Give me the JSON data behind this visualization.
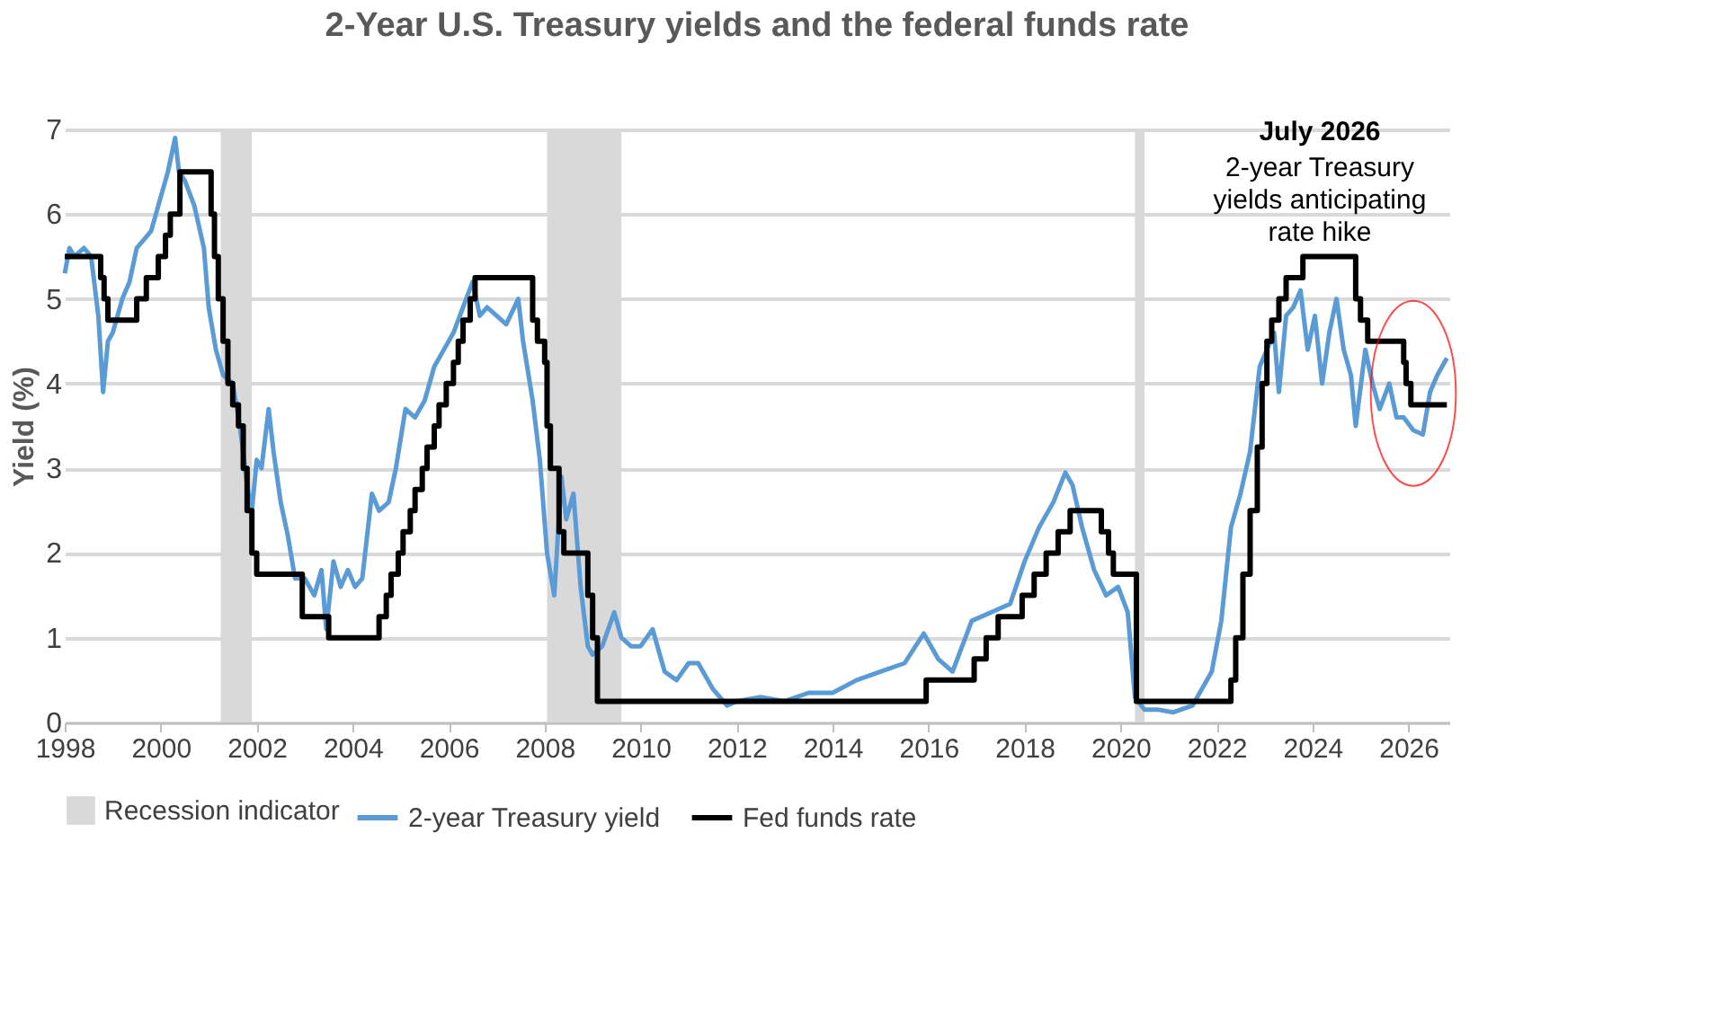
{
  "chart_data": {
    "type": "line",
    "title": "2-Year U.S. Treasury yields and the federal funds rate",
    "ylabel": "Yield (%)",
    "xlim": [
      1998,
      2026.85
    ],
    "xticks": [
      1998,
      2000,
      2002,
      2004,
      2006,
      2008,
      2010,
      2012,
      2014,
      2016,
      2018,
      2020,
      2022,
      2024,
      2026
    ],
    "ylim": [
      0,
      7
    ],
    "yticks": [
      0,
      1,
      2,
      3,
      4,
      5,
      6,
      7
    ],
    "grid": "y",
    "legend": "bottom",
    "line_style": "solid",
    "marker": "none",
    "bands": [
      {
        "axis": "x",
        "from": 2001.25,
        "to": 2001.9,
        "label": "Recession indicator",
        "color": "#d9d9d9"
      },
      {
        "axis": "x",
        "from": 2008.05,
        "to": 2009.6,
        "color": "#d9d9d9"
      },
      {
        "axis": "x",
        "from": 2020.3,
        "to": 2020.5,
        "color": "#d9d9d9"
      }
    ],
    "annotations": [
      "July 2026",
      "2-year Treasury\nyields anticipating\nrate hike"
    ],
    "series": [
      {
        "name": "2-year Treasury yield",
        "color": "#5b9bd5",
        "x": [
          1998.0,
          1998.1,
          1998.2,
          1998.4,
          1998.55,
          1998.7,
          1998.8,
          1998.9,
          1999.0,
          1999.2,
          1999.35,
          1999.5,
          1999.65,
          1999.8,
          2000.0,
          2000.15,
          2000.3,
          2000.38,
          2000.5,
          2000.7,
          2000.9,
          2001.0,
          2001.15,
          2001.3,
          2001.5,
          2001.65,
          2001.8,
          2001.9,
          2002.0,
          2002.1,
          2002.25,
          2002.35,
          2002.5,
          2002.65,
          2002.8,
          2003.0,
          2003.2,
          2003.35,
          2003.45,
          2003.6,
          2003.75,
          2003.9,
          2004.05,
          2004.2,
          2004.4,
          2004.55,
          2004.75,
          2004.9,
          2005.1,
          2005.3,
          2005.5,
          2005.7,
          2005.9,
          2006.1,
          2006.3,
          2006.5,
          2006.65,
          2006.8,
          2007.0,
          2007.2,
          2007.45,
          2007.55,
          2007.75,
          2007.9,
          2008.05,
          2008.2,
          2008.35,
          2008.45,
          2008.6,
          2008.75,
          2008.9,
          2009.0,
          2009.2,
          2009.45,
          2009.6,
          2009.8,
          2010.0,
          2010.25,
          2010.5,
          2010.75,
          2011.0,
          2011.2,
          2011.5,
          2011.8,
          2012.0,
          2012.5,
          2013.0,
          2013.5,
          2014.0,
          2014.5,
          2015.0,
          2015.5,
          2015.9,
          2016.2,
          2016.5,
          2016.9,
          2017.3,
          2017.7,
          2018.0,
          2018.3,
          2018.6,
          2018.85,
          2019.0,
          2019.2,
          2019.45,
          2019.7,
          2019.95,
          2020.15,
          2020.3,
          2020.5,
          2020.8,
          2021.1,
          2021.5,
          2021.9,
          2022.1,
          2022.3,
          2022.5,
          2022.7,
          2022.9,
          2023.05,
          2023.2,
          2023.3,
          2023.45,
          2023.6,
          2023.75,
          2023.9,
          2024.05,
          2024.2,
          2024.35,
          2024.5,
          2024.65,
          2024.8,
          2024.9,
          2025.1,
          2025.25,
          2025.4,
          2025.6,
          2025.75,
          2025.9,
          2026.1,
          2026.3,
          2026.45,
          2026.6,
          2026.8
        ],
        "values": [
          5.3,
          5.6,
          5.5,
          5.6,
          5.5,
          4.8,
          3.9,
          4.5,
          4.6,
          5.0,
          5.2,
          5.6,
          5.7,
          5.8,
          6.2,
          6.5,
          6.9,
          6.5,
          6.4,
          6.1,
          5.6,
          4.9,
          4.4,
          4.1,
          4.0,
          3.5,
          2.8,
          2.5,
          3.1,
          3.0,
          3.7,
          3.2,
          2.6,
          2.2,
          1.7,
          1.7,
          1.5,
          1.8,
          1.1,
          1.9,
          1.6,
          1.8,
          1.6,
          1.7,
          2.7,
          2.5,
          2.6,
          3.0,
          3.7,
          3.6,
          3.8,
          4.2,
          4.4,
          4.6,
          4.9,
          5.2,
          4.8,
          4.9,
          4.8,
          4.7,
          5.0,
          4.5,
          3.8,
          3.1,
          2.0,
          1.5,
          2.9,
          2.4,
          2.7,
          1.6,
          0.9,
          0.8,
          0.9,
          1.3,
          1.0,
          0.9,
          0.9,
          1.1,
          0.6,
          0.5,
          0.7,
          0.7,
          0.4,
          0.2,
          0.25,
          0.3,
          0.25,
          0.35,
          0.35,
          0.5,
          0.6,
          0.7,
          1.05,
          0.75,
          0.6,
          1.2,
          1.3,
          1.4,
          1.9,
          2.3,
          2.6,
          2.95,
          2.8,
          2.3,
          1.8,
          1.5,
          1.6,
          1.3,
          0.3,
          0.15,
          0.15,
          0.12,
          0.2,
          0.6,
          1.2,
          2.3,
          2.7,
          3.2,
          4.2,
          4.4,
          4.6,
          3.9,
          4.8,
          4.9,
          5.1,
          4.4,
          4.8,
          4.0,
          4.6,
          5.0,
          4.4,
          4.1,
          3.5,
          4.4,
          4.0,
          3.7,
          4.0,
          3.6,
          3.6,
          3.45,
          3.4,
          3.9,
          4.1,
          4.3
        ]
      },
      {
        "name": "Fed funds rate",
        "color": "#000000",
        "type": "step",
        "x": [
          1998.0,
          1998.75,
          1998.82,
          1998.9,
          1999.5,
          1999.7,
          1999.95,
          2000.1,
          2000.2,
          2000.4,
          2001.05,
          2001.12,
          2001.2,
          2001.3,
          2001.4,
          2001.5,
          2001.62,
          2001.72,
          2001.8,
          2001.9,
          2002.0,
          2002.95,
          2003.5,
          2004.55,
          2004.7,
          2004.8,
          2004.95,
          2005.05,
          2005.2,
          2005.3,
          2005.45,
          2005.55,
          2005.7,
          2005.8,
          2005.95,
          2006.1,
          2006.2,
          2006.3,
          2006.45,
          2006.55,
          2007.75,
          2007.85,
          2008.0,
          2008.05,
          2008.12,
          2008.3,
          2008.4,
          2008.9,
          2009.0,
          2009.1,
          2015.95,
          2016.95,
          2017.2,
          2017.45,
          2017.95,
          2018.2,
          2018.45,
          2018.7,
          2018.95,
          2019.6,
          2019.75,
          2019.85,
          2020.33,
          2022.3,
          2022.4,
          2022.55,
          2022.7,
          2022.85,
          2022.95,
          2023.05,
          2023.15,
          2023.3,
          2023.45,
          2023.8,
          2024.9,
          2025.0,
          2025.15,
          2025.9,
          2025.95,
          2026.05,
          2026.8
        ],
        "values": [
          5.5,
          5.25,
          5.0,
          4.75,
          5.0,
          5.25,
          5.5,
          5.75,
          6.0,
          6.5,
          6.0,
          5.5,
          5.0,
          4.5,
          4.0,
          3.75,
          3.5,
          3.0,
          2.5,
          2.0,
          1.75,
          1.25,
          1.0,
          1.25,
          1.5,
          1.75,
          2.0,
          2.25,
          2.5,
          2.75,
          3.0,
          3.25,
          3.5,
          3.75,
          4.0,
          4.25,
          4.5,
          4.75,
          5.0,
          5.25,
          4.75,
          4.5,
          4.25,
          3.5,
          3.0,
          2.25,
          2.0,
          1.5,
          1.0,
          0.25,
          0.5,
          0.75,
          1.0,
          1.25,
          1.5,
          1.75,
          2.0,
          2.25,
          2.5,
          2.25,
          2.0,
          1.75,
          0.25,
          0.5,
          1.0,
          1.75,
          2.5,
          3.25,
          4.0,
          4.5,
          4.75,
          5.0,
          5.25,
          5.5,
          5.0,
          4.75,
          4.5,
          4.25,
          4.0,
          3.75,
          3.75
        ]
      }
    ]
  }
}
